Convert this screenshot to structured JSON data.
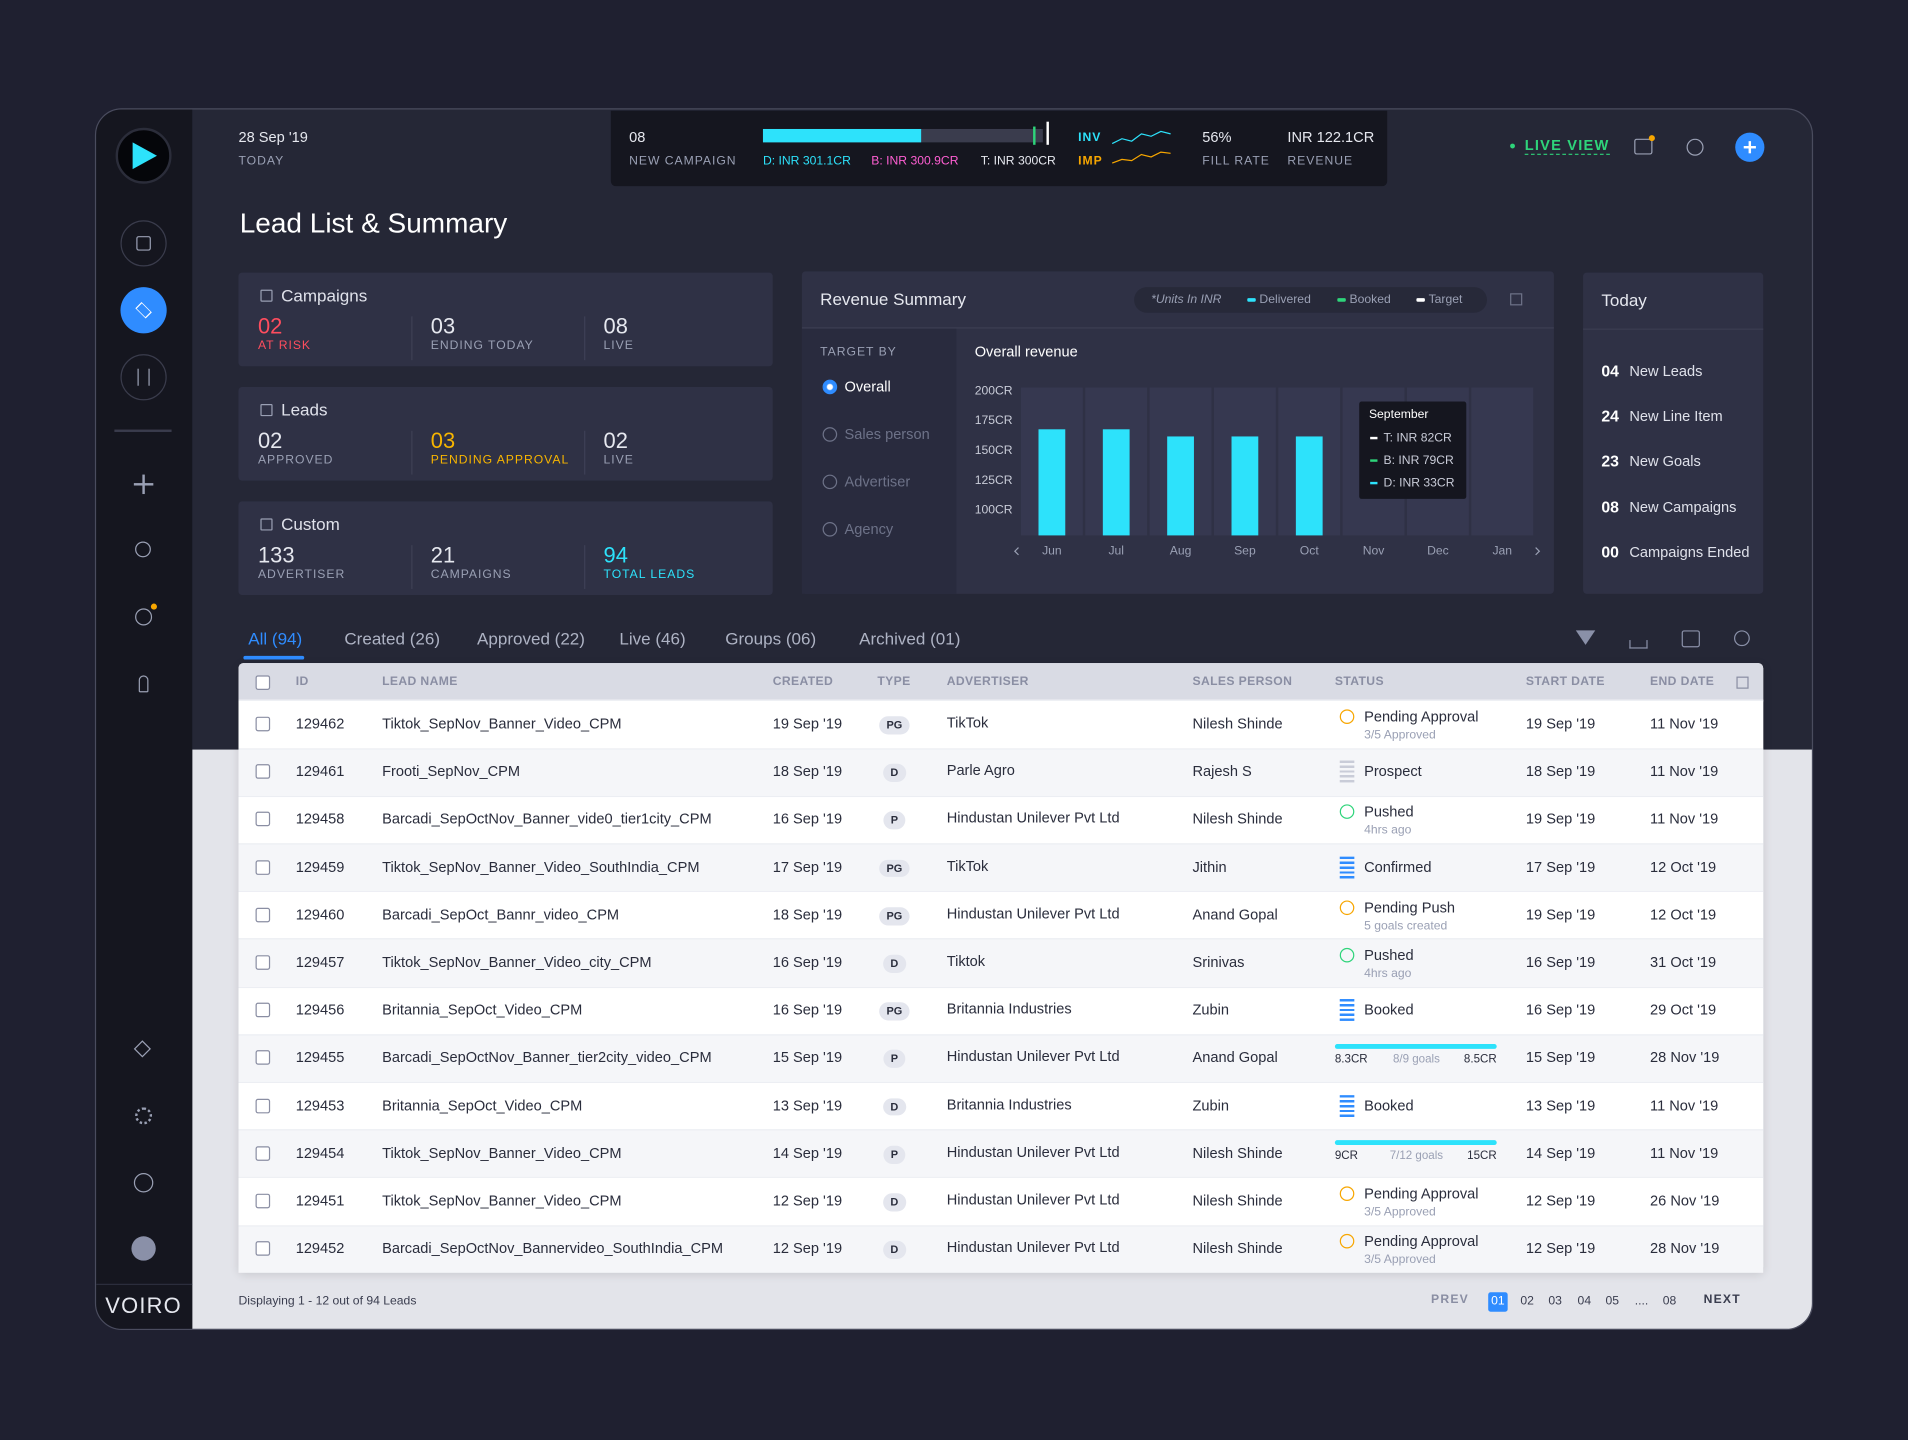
{
  "header": {
    "date": "28 Sep '19",
    "date_label": "TODAY",
    "new_campaign": "08",
    "new_campaign_label": "NEW CAMPAIGN",
    "delivered": "D: INR 301.1CR",
    "booked": "B: INR 300.9CR",
    "target": "T: INR 300CR",
    "inv": "INV",
    "imp": "IMP",
    "fill_rate": "56%",
    "fill_rate_label": "FILL RATE",
    "revenue": "INR 122.1CR",
    "revenue_label": "REVENUE",
    "live_view": "LIVE VIEW"
  },
  "page_title": "Lead List & Summary",
  "cards": [
    {
      "title": "Campaigns",
      "stats": [
        {
          "value": "02",
          "label": "AT RISK",
          "color": "#ff4d5e"
        },
        {
          "value": "03",
          "label": "ENDING TODAY"
        },
        {
          "value": "08",
          "label": "LIVE"
        }
      ]
    },
    {
      "title": "Leads",
      "stats": [
        {
          "value": "02",
          "label": "APPROVED"
        },
        {
          "value": "03",
          "label": "PENDING APPROVAL",
          "color": "#f7b500"
        },
        {
          "value": "02",
          "label": "LIVE"
        }
      ]
    },
    {
      "title": "Custom",
      "stats": [
        {
          "value": "133",
          "label": "ADVERTISER"
        },
        {
          "value": "21",
          "label": "CAMPAIGNS"
        },
        {
          "value": "94",
          "label": "TOTAL LEADS",
          "color": "#2de2fb"
        }
      ]
    }
  ],
  "revenue_summary": {
    "title": "Revenue Summary",
    "units": "*Units In INR",
    "legend": [
      {
        "name": "Delivered",
        "color": "#2de2fb"
      },
      {
        "name": "Booked",
        "color": "#2ed47a"
      },
      {
        "name": "Target",
        "color": "#ffffff"
      }
    ],
    "target_by": "TARGET BY",
    "options": [
      "Overall",
      "Sales person",
      "Advertiser",
      "Agency"
    ],
    "tooltip": {
      "title": "September",
      "lines": [
        "T: INR 82CR",
        "B: INR 79CR",
        "D: INR 33CR"
      ]
    }
  },
  "chart_data": {
    "type": "bar",
    "title": "Overall revenue",
    "categories": [
      "Jun",
      "Jul",
      "Aug",
      "Sep",
      "Oct",
      "Nov",
      "Dec",
      "Jan"
    ],
    "values": [
      168,
      168,
      162,
      162,
      162,
      null,
      null,
      null
    ],
    "color": "#2de2fb",
    "ylim": [
      79,
      203
    ],
    "yticks": [
      {
        "value": 100,
        "label": "100CR"
      },
      {
        "value": 125,
        "label": "125CR"
      },
      {
        "value": 150,
        "label": "150CR"
      },
      {
        "value": 175,
        "label": "175CR"
      },
      {
        "value": 200,
        "label": "200CR"
      }
    ]
  },
  "today": {
    "title": "Today",
    "items": [
      {
        "value": "04",
        "label": "New Leads"
      },
      {
        "value": "24",
        "label": "New Line Item"
      },
      {
        "value": "23",
        "label": "New Goals"
      },
      {
        "value": "08",
        "label": "New Campaigns"
      },
      {
        "value": "00",
        "label": "Campaigns Ended"
      }
    ]
  },
  "tabs": [
    "All (94)",
    "Created (26)",
    "Approved (22)",
    "Live (46)",
    "Groups (06)",
    "Archived (01)"
  ],
  "table": {
    "columns": [
      "ID",
      "LEAD NAME",
      "CREATED",
      "TYPE",
      "ADVERTISER",
      "SALES PERSON",
      "STATUS",
      "START DATE",
      "END DATE"
    ],
    "rows": [
      {
        "id": "129462",
        "name": "Tiktok_SepNov_Banner_Video_CPM",
        "created": "19 Sep '19",
        "type": "PG",
        "advertiser": "TikTok",
        "sales": "Nilesh Shinde",
        "status": {
          "icon": "warn",
          "text": "Pending Approval",
          "sub": "3/5 Approved"
        },
        "start": "19 Sep '19",
        "end": "11 Nov '19"
      },
      {
        "id": "129461",
        "name": "Frooti_SepNov_CPM",
        "created": "18 Sep '19",
        "type": "D",
        "advertiser": "Parle Agro",
        "sales": "Rajesh S",
        "status": {
          "icon": "doc",
          "text": "Prospect"
        },
        "start": "18 Sep '19",
        "end": "11 Nov '19"
      },
      {
        "id": "129458",
        "name": "Barcadi_SepOctNov_Banner_vide0_tier1city_CPM",
        "created": "16 Sep '19",
        "type": "P",
        "advertiser": "Hindustan Unilever Pvt Ltd",
        "sales": "Nilesh Shinde",
        "status": {
          "icon": "push",
          "text": "Pushed",
          "sub": "4hrs ago"
        },
        "start": "19 Sep '19",
        "end": "11 Nov '19"
      },
      {
        "id": "129459",
        "name": "Tiktok_SepNov_Banner_Video_SouthIndia_CPM",
        "created": "17 Sep '19",
        "type": "PG",
        "advertiser": "TikTok",
        "sales": "Jithin",
        "status": {
          "icon": "bars",
          "text": "Confirmed"
        },
        "start": "17 Sep '19",
        "end": "12 Oct '19"
      },
      {
        "id": "129460",
        "name": "Barcadi_SepOct_Bannr_video_CPM",
        "created": "18 Sep '19",
        "type": "PG",
        "advertiser": "Hindustan Unilever Pvt Ltd",
        "sales": "Anand Gopal",
        "status": {
          "icon": "pending",
          "text": "Pending Push",
          "sub": "5 goals created"
        },
        "start": "19 Sep '19",
        "end": "12 Oct '19"
      },
      {
        "id": "129457",
        "name": "Tiktok_SepNov_Banner_Video_city_CPM",
        "created": "16 Sep '19",
        "type": "D",
        "advertiser": "Tiktok",
        "sales": "Srinivas",
        "status": {
          "icon": "push",
          "text": "Pushed",
          "sub": "4hrs ago"
        },
        "start": "16 Sep '19",
        "end": "31 Oct '19"
      },
      {
        "id": "129456",
        "name": "Britannia_SepOct_Video_CPM",
        "created": "16 Sep '19",
        "type": "PG",
        "advertiser": "Britannia Industries",
        "sales": "Zubin",
        "status": {
          "icon": "bars",
          "text": "Booked"
        },
        "start": "16 Sep '19",
        "end": "29 Oct '19"
      },
      {
        "id": "129455",
        "name": "Barcadi_SepOctNov_Banner_tier2city_video_CPM",
        "created": "15 Sep '19",
        "type": "P",
        "advertiser": "Hindustan Unilever Pvt Ltd",
        "sales": "Anand Gopal",
        "status": {
          "progress": [
            "8.3CR",
            "8/9 goals",
            "8.5CR"
          ]
        },
        "start": "15 Sep '19",
        "end": "28 Nov '19"
      },
      {
        "id": "129453",
        "name": "Britannia_SepOct_Video_CPM",
        "created": "13 Sep '19",
        "type": "D",
        "advertiser": "Britannia Industries",
        "sales": "Zubin",
        "status": {
          "icon": "bars",
          "text": "Booked"
        },
        "start": "13 Sep '19",
        "end": "11 Nov '19"
      },
      {
        "id": "129454",
        "name": "Tiktok_SepNov_Banner_Video_CPM",
        "created": "14 Sep '19",
        "type": "P",
        "advertiser": "Hindustan Unilever Pvt Ltd",
        "sales": "Nilesh Shinde",
        "status": {
          "progress": [
            "9CR",
            "7/12 goals",
            "15CR"
          ]
        },
        "start": "14 Sep '19",
        "end": "11 Nov '19"
      },
      {
        "id": "129451",
        "name": "Tiktok_SepNov_Banner_Video_CPM",
        "created": "12 Sep '19",
        "type": "D",
        "advertiser": "Hindustan Unilever Pvt Ltd",
        "sales": "Nilesh Shinde",
        "status": {
          "icon": "warn",
          "text": "Pending Approval",
          "sub": "3/5 Approved"
        },
        "start": "12 Sep '19",
        "end": "26 Nov '19"
      },
      {
        "id": "129452",
        "name": "Barcadi_SepOctNov_Bannervideo_SouthIndia_CPM",
        "created": "12 Sep '19",
        "type": "D",
        "advertiser": "Hindustan Unilever Pvt Ltd",
        "sales": "Nilesh Shinde",
        "status": {
          "icon": "warn",
          "text": "Pending Approval",
          "sub": "3/5 Approved"
        },
        "start": "12 Sep '19",
        "end": "28 Nov '19"
      }
    ]
  },
  "footer": {
    "displaying": "Displaying 1 - 12 out of 94 Leads",
    "prev": "PREV",
    "pages": [
      "01",
      "02",
      "03",
      "04",
      "05",
      "....",
      "08"
    ],
    "next": "NEXT"
  },
  "brand": "VOIRO"
}
